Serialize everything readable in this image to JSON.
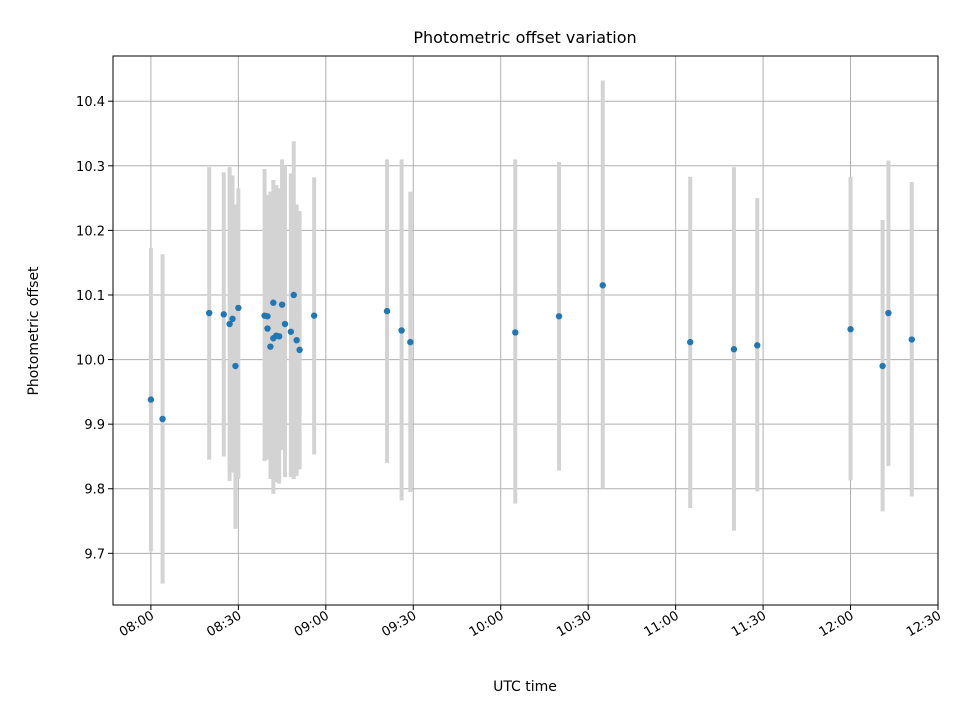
{
  "chart_data": {
    "type": "scatter",
    "title": "Photometric offset variation",
    "xlabel": "UTC time",
    "ylabel": "Photometric offset",
    "xlim": [
      "07:47",
      "12:30"
    ],
    "ylim": [
      9.62,
      10.47
    ],
    "grid": true,
    "x_ticks": [
      "08:00",
      "08:30",
      "09:00",
      "09:30",
      "10:00",
      "10:30",
      "11:00",
      "11:30",
      "12:00",
      "12:30"
    ],
    "y_ticks": [
      "9.7",
      "9.8",
      "9.9",
      "10.0",
      "10.1",
      "10.2",
      "10.3",
      "10.4"
    ],
    "colors": {
      "point": "#1f77b4",
      "errorbar": "#d3d3d3",
      "grid": "#b0b0b0"
    },
    "series": [
      {
        "points": [
          {
            "t": "08:00",
            "y": 9.938,
            "lo": 9.703,
            "hi": 10.173
          },
          {
            "t": "08:04",
            "y": 9.908,
            "lo": 9.653,
            "hi": 10.163
          },
          {
            "t": "08:20",
            "y": 10.072,
            "lo": 9.845,
            "hi": 10.298
          },
          {
            "t": "08:25",
            "y": 10.07,
            "lo": 9.85,
            "hi": 10.29
          },
          {
            "t": "08:27",
            "y": 10.055,
            "lo": 9.812,
            "hi": 10.298
          },
          {
            "t": "08:28",
            "y": 10.063,
            "lo": 9.825,
            "hi": 10.285
          },
          {
            "t": "08:29",
            "y": 9.99,
            "lo": 9.738,
            "hi": 10.24
          },
          {
            "t": "08:30",
            "y": 10.08,
            "lo": 9.815,
            "hi": 10.265
          },
          {
            "t": "08:39",
            "y": 10.068,
            "lo": 9.843,
            "hi": 10.295
          },
          {
            "t": "08:40",
            "y": 10.048,
            "lo": 9.845,
            "hi": 10.25
          },
          {
            "t": "08:40",
            "y": 10.067,
            "lo": 9.86,
            "hi": 10.255
          },
          {
            "t": "08:41",
            "y": 10.02,
            "lo": 9.815,
            "hi": 10.26
          },
          {
            "t": "08:42",
            "y": 10.033,
            "lo": 9.792,
            "hi": 10.25
          },
          {
            "t": "08:42",
            "y": 10.088,
            "lo": 9.86,
            "hi": 10.278
          },
          {
            "t": "08:43",
            "y": 10.037,
            "lo": 9.81,
            "hi": 10.27
          },
          {
            "t": "08:44",
            "y": 10.036,
            "lo": 9.808,
            "hi": 10.265
          },
          {
            "t": "08:45",
            "y": 10.085,
            "lo": 9.86,
            "hi": 10.31
          },
          {
            "t": "08:46",
            "y": 10.055,
            "lo": 9.818,
            "hi": 10.3
          },
          {
            "t": "08:48",
            "y": 10.043,
            "lo": 9.818,
            "hi": 10.288
          },
          {
            "t": "08:49",
            "y": 10.1,
            "lo": 9.815,
            "hi": 10.338
          },
          {
            "t": "08:50",
            "y": 10.03,
            "lo": 9.82,
            "hi": 10.24
          },
          {
            "t": "08:51",
            "y": 10.015,
            "lo": 9.83,
            "hi": 10.23
          },
          {
            "t": "08:56",
            "y": 10.068,
            "lo": 9.853,
            "hi": 10.282
          },
          {
            "t": "09:21",
            "y": 10.075,
            "lo": 9.84,
            "hi": 10.31
          },
          {
            "t": "09:26",
            "y": 10.045,
            "lo": 9.782,
            "hi": 10.31
          },
          {
            "t": "09:29",
            "y": 10.027,
            "lo": 9.795,
            "hi": 10.26
          },
          {
            "t": "10:05",
            "y": 10.042,
            "lo": 9.777,
            "hi": 10.31
          },
          {
            "t": "10:20",
            "y": 10.067,
            "lo": 9.828,
            "hi": 10.306
          },
          {
            "t": "10:35",
            "y": 10.115,
            "lo": 9.8,
            "hi": 10.432
          },
          {
            "t": "11:05",
            "y": 10.027,
            "lo": 9.77,
            "hi": 10.283
          },
          {
            "t": "11:20",
            "y": 10.016,
            "lo": 9.735,
            "hi": 10.298
          },
          {
            "t": "11:28",
            "y": 10.022,
            "lo": 9.796,
            "hi": 10.25
          },
          {
            "t": "12:00",
            "y": 10.047,
            "lo": 9.813,
            "hi": 10.283
          },
          {
            "t": "12:11",
            "y": 9.99,
            "lo": 9.765,
            "hi": 10.216
          },
          {
            "t": "12:13",
            "y": 10.072,
            "lo": 9.835,
            "hi": 10.308
          },
          {
            "t": "12:21",
            "y": 10.031,
            "lo": 9.788,
            "hi": 10.275
          }
        ]
      }
    ]
  }
}
